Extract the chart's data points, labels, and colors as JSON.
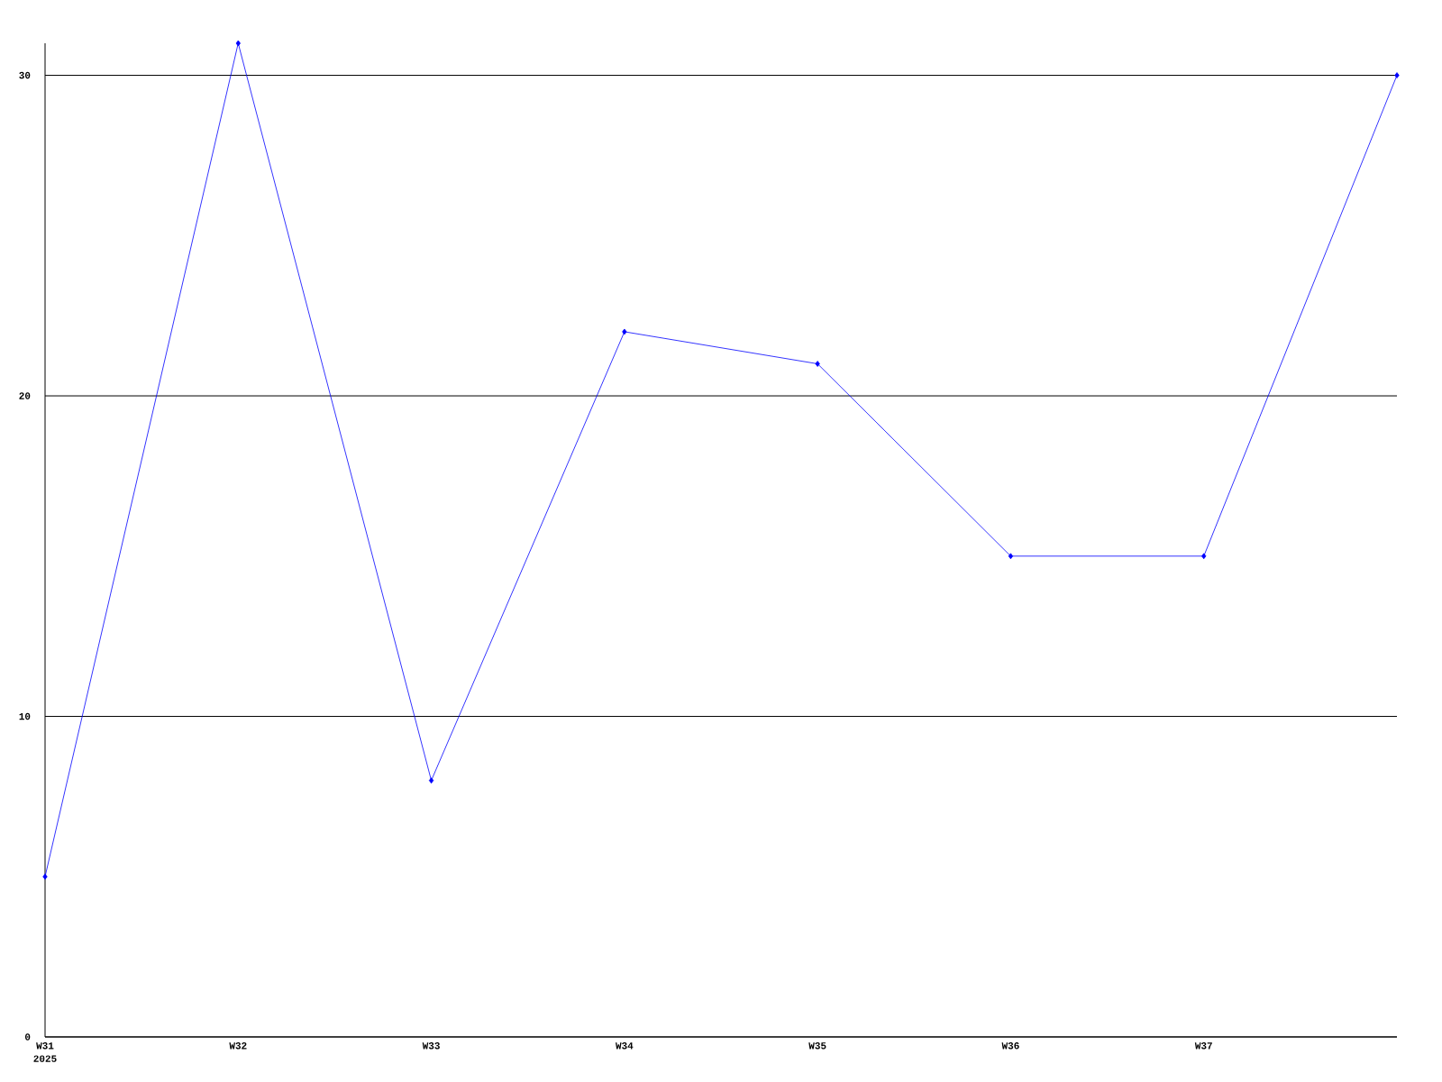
{
  "chart_data": {
    "type": "line",
    "categories": [
      "W31",
      "W32",
      "W33",
      "W34",
      "W35",
      "W36",
      "W37",
      null
    ],
    "series": [
      {
        "color": "#0000ff",
        "values": [
          5,
          31,
          8,
          22,
          21,
          15,
          15,
          30
        ]
      }
    ],
    "ylim": [
      0,
      31
    ],
    "yticks": [
      0,
      10,
      20,
      30
    ],
    "grid": "y",
    "marker": "diamond",
    "line_style": "solid",
    "annotations": [
      "2025"
    ]
  }
}
